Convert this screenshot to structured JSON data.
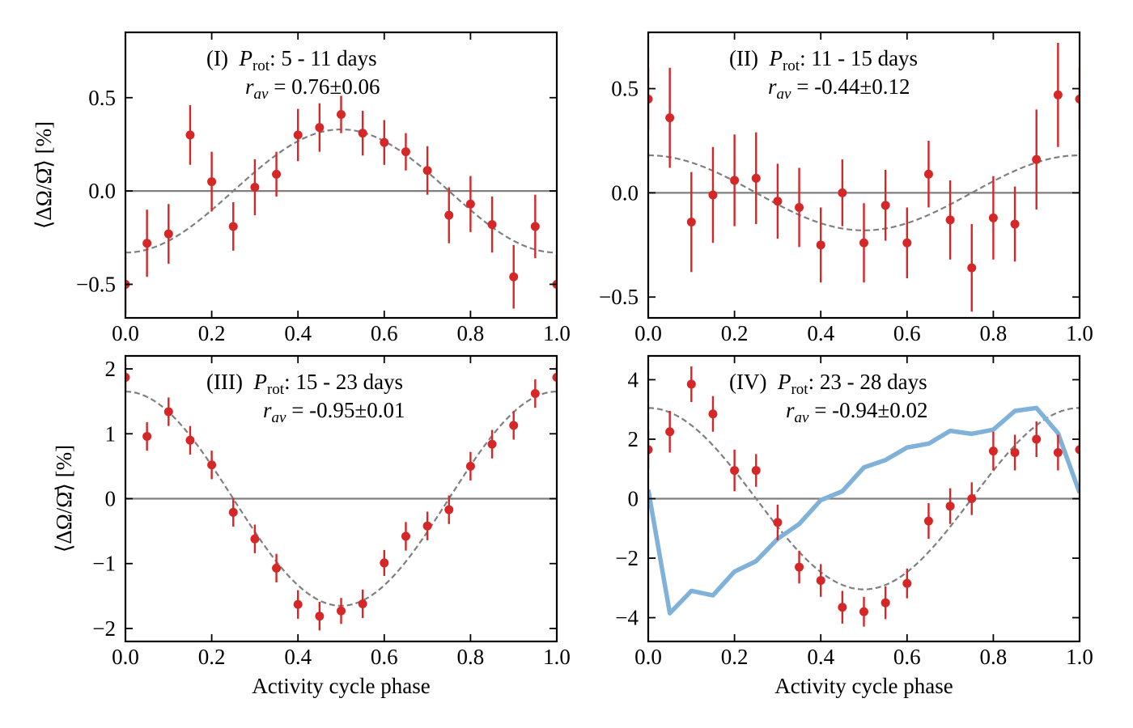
{
  "figure": {
    "xlabel": "Activity cycle phase",
    "ylabel": "⟨ΔΩ/Ω̄⟩ [%]",
    "colors": {
      "points": "#d62728",
      "fit": "#7f7f7f",
      "zero": "#7f7f7f",
      "blue": "#7fb1d9"
    }
  },
  "chart_data": [
    {
      "type": "scatter",
      "panel": "I",
      "label_roman": "(I)",
      "label_p": "P",
      "label_rot": "rot",
      "label_range": ": 5 - 11 days",
      "label_r": "r",
      "label_av": "av",
      "label_rval": " = 0.76±0.06",
      "xlim": [
        0,
        1
      ],
      "ylim": [
        -0.68,
        0.85
      ],
      "xticks": [
        0,
        0.2,
        0.4,
        0.6,
        0.8,
        1.0
      ],
      "xticklabels": [
        "0.0",
        "0.2",
        "0.4",
        "0.6",
        "0.8",
        "1.0"
      ],
      "yticks": [
        -0.5,
        0,
        0.5
      ],
      "yticklabels": [
        "−0.5",
        "0.0",
        "0.5"
      ],
      "fit": {
        "amplitude": -0.33,
        "phase_max": 0.0,
        "comment": "y = A cos(2πx)"
      },
      "x": [
        0.0,
        0.05,
        0.1,
        0.15,
        0.2,
        0.25,
        0.3,
        0.35,
        0.4,
        0.45,
        0.5,
        0.55,
        0.6,
        0.65,
        0.7,
        0.75,
        0.8,
        0.85,
        0.9,
        0.95,
        1.0
      ],
      "y": [
        -0.5,
        -0.28,
        -0.23,
        0.3,
        0.05,
        -0.19,
        0.02,
        0.09,
        0.3,
        0.34,
        0.41,
        0.31,
        0.26,
        0.21,
        0.11,
        -0.13,
        -0.07,
        -0.18,
        -0.46,
        -0.19,
        -0.5
      ],
      "err": [
        0.16,
        0.18,
        0.16,
        0.16,
        0.16,
        0.13,
        0.15,
        0.12,
        0.14,
        0.13,
        0.1,
        0.12,
        0.12,
        0.1,
        0.13,
        0.15,
        0.15,
        0.15,
        0.17,
        0.17,
        0.16
      ],
      "ylabel_show": true,
      "xlabel_show": false
    },
    {
      "type": "scatter",
      "panel": "II",
      "label_roman": "(II)",
      "label_p": "P",
      "label_rot": "rot",
      "label_range": ": 11 - 15 days",
      "label_r": "r",
      "label_av": "av",
      "label_rval": " = -0.44±0.12",
      "xlim": [
        0,
        1
      ],
      "ylim": [
        -0.6,
        0.77
      ],
      "xticks": [
        0,
        0.2,
        0.4,
        0.6,
        0.8,
        1.0
      ],
      "xticklabels": [
        "0.0",
        "0.2",
        "0.4",
        "0.6",
        "0.8",
        "1.0"
      ],
      "yticks": [
        -0.5,
        0,
        0.5
      ],
      "yticklabels": [
        "−0.5",
        "0.0",
        "0.5"
      ],
      "fit": {
        "amplitude": 0.18,
        "phase_max": 0.0,
        "comment": "y = A cos(2πx)"
      },
      "x": [
        0.0,
        0.05,
        0.1,
        0.15,
        0.2,
        0.25,
        0.3,
        0.35,
        0.4,
        0.45,
        0.5,
        0.55,
        0.6,
        0.65,
        0.7,
        0.75,
        0.8,
        0.85,
        0.9,
        0.95,
        1.0
      ],
      "y": [
        0.45,
        0.36,
        -0.14,
        -0.01,
        0.06,
        0.07,
        -0.04,
        -0.07,
        -0.25,
        0.0,
        -0.24,
        -0.06,
        -0.24,
        0.09,
        -0.13,
        -0.36,
        -0.12,
        -0.15,
        0.16,
        0.47,
        0.45
      ],
      "err": [
        0.15,
        0.24,
        0.24,
        0.23,
        0.22,
        0.22,
        0.18,
        0.19,
        0.18,
        0.16,
        0.19,
        0.17,
        0.17,
        0.16,
        0.19,
        0.21,
        0.2,
        0.18,
        0.24,
        0.25,
        0.15
      ],
      "ylabel_show": false,
      "xlabel_show": false
    },
    {
      "type": "scatter",
      "panel": "III",
      "label_roman": "(III)",
      "label_p": "P",
      "label_rot": "rot",
      "label_range": ": 15 - 23 days",
      "label_r": "r",
      "label_av": "av",
      "label_rval": " = -0.95±0.01",
      "xlim": [
        0,
        1
      ],
      "ylim": [
        -2.2,
        2.2
      ],
      "xticks": [
        0,
        0.2,
        0.4,
        0.6,
        0.8,
        1.0
      ],
      "xticklabels": [
        "0.0",
        "0.2",
        "0.4",
        "0.6",
        "0.8",
        "1.0"
      ],
      "yticks": [
        -2,
        -1,
        0,
        1,
        2
      ],
      "yticklabels": [
        "−2",
        "−1",
        "0",
        "1",
        "2"
      ],
      "fit": {
        "amplitude": 1.65,
        "phase_max": 0.0,
        "comment": "y = A cos(2πx)"
      },
      "x": [
        0.0,
        0.05,
        0.1,
        0.15,
        0.2,
        0.25,
        0.3,
        0.35,
        0.4,
        0.45,
        0.5,
        0.55,
        0.6,
        0.65,
        0.7,
        0.75,
        0.8,
        0.85,
        0.9,
        0.95,
        1.0
      ],
      "y": [
        1.87,
        0.96,
        1.34,
        0.9,
        0.52,
        -0.21,
        -0.62,
        -1.07,
        -1.63,
        -1.81,
        -1.73,
        -1.62,
        -0.99,
        -0.58,
        -0.42,
        -0.17,
        0.5,
        0.84,
        1.13,
        1.62,
        1.87
      ],
      "err": [
        0.2,
        0.22,
        0.22,
        0.22,
        0.22,
        0.22,
        0.22,
        0.22,
        0.22,
        0.22,
        0.2,
        0.22,
        0.2,
        0.22,
        0.22,
        0.22,
        0.22,
        0.22,
        0.22,
        0.22,
        0.2
      ],
      "ylabel_show": true,
      "xlabel_show": true
    },
    {
      "type": "scatter",
      "panel": "IV",
      "label_roman": "(IV)",
      "label_p": "P",
      "label_rot": "rot",
      "label_range": ": 23 - 28 days",
      "label_r": "r",
      "label_av": "av",
      "label_rval": " = -0.94±0.02",
      "xlim": [
        0,
        1
      ],
      "ylim": [
        -4.8,
        4.8
      ],
      "xticks": [
        0,
        0.2,
        0.4,
        0.6,
        0.8,
        1.0
      ],
      "xticklabels": [
        "0.0",
        "0.2",
        "0.4",
        "0.6",
        "0.8",
        "1.0"
      ],
      "yticks": [
        -4,
        -2,
        0,
        2,
        4
      ],
      "yticklabels": [
        "−4",
        "−2",
        "0",
        "2",
        "4"
      ],
      "fit": {
        "amplitude": 3.05,
        "phase_max": 0.0,
        "comment": "y = A cos(2πx)"
      },
      "x": [
        0.0,
        0.05,
        0.1,
        0.15,
        0.2,
        0.25,
        0.3,
        0.35,
        0.4,
        0.45,
        0.5,
        0.55,
        0.6,
        0.65,
        0.7,
        0.75,
        0.8,
        0.85,
        0.9,
        0.95,
        1.0
      ],
      "y": [
        1.65,
        2.25,
        3.85,
        2.85,
        0.95,
        0.95,
        -0.8,
        -2.3,
        -2.75,
        -3.65,
        -3.8,
        -3.5,
        -2.85,
        -0.75,
        -0.25,
        0.0,
        1.6,
        1.55,
        2.0,
        1.55,
        1.65
      ],
      "err": [
        0.65,
        0.7,
        0.6,
        0.6,
        0.7,
        0.55,
        0.6,
        0.55,
        0.55,
        0.55,
        0.5,
        0.55,
        0.5,
        0.6,
        0.6,
        0.55,
        0.65,
        0.6,
        0.6,
        0.6,
        0.65
      ],
      "line": {
        "name": "blue line",
        "x": [
          0.0,
          0.05,
          0.1,
          0.15,
          0.2,
          0.25,
          0.3,
          0.35,
          0.4,
          0.45,
          0.5,
          0.55,
          0.6,
          0.65,
          0.7,
          0.75,
          0.8,
          0.85,
          0.9,
          0.95,
          1.0
        ],
        "y": [
          0.3,
          -3.85,
          -3.1,
          -3.25,
          -2.45,
          -2.1,
          -1.35,
          -0.85,
          -0.05,
          0.25,
          1.05,
          1.3,
          1.72,
          1.85,
          2.28,
          2.18,
          2.32,
          2.95,
          3.05,
          2.2,
          0.2
        ]
      },
      "ylabel_show": false,
      "xlabel_show": true
    }
  ]
}
